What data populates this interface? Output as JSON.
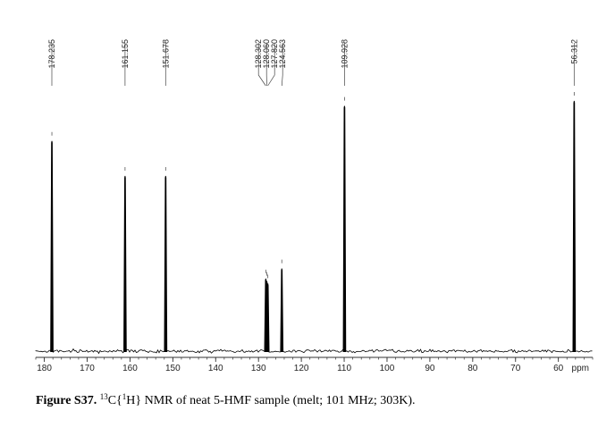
{
  "chart_data": {
    "type": "line",
    "spectrum": "13C{1H} NMR",
    "xlabel": "ppm",
    "xlim": [
      182,
      52
    ],
    "x_reversed": true,
    "x_ticks": [
      180,
      170,
      160,
      150,
      140,
      130,
      120,
      110,
      100,
      90,
      80,
      70,
      60
    ],
    "grid": false,
    "peaks": [
      {
        "label": "178.235",
        "ppm": 178.235,
        "intensity": 0.84
      },
      {
        "label": "161.155",
        "ppm": 161.155,
        "intensity": 0.7
      },
      {
        "label": "151.678",
        "ppm": 151.678,
        "intensity": 0.7
      },
      {
        "label": "128.302",
        "ppm": 128.302,
        "intensity": 0.29
      },
      {
        "label": "128.060",
        "ppm": 128.06,
        "intensity": 0.28
      },
      {
        "label": "127.820",
        "ppm": 127.82,
        "intensity": 0.27
      },
      {
        "label": "124.563",
        "ppm": 124.563,
        "intensity": 0.33
      },
      {
        "label": "109.928",
        "ppm": 109.928,
        "intensity": 0.98
      },
      {
        "label": "56.312",
        "ppm": 56.312,
        "intensity": 1.0
      }
    ]
  },
  "caption": {
    "figure_label": "Figure S37.",
    "nucleus_mass": "13",
    "nucleus_symbol": "C{",
    "decoupled_mass": "1",
    "decoupled_symbol": "H}",
    "text": " NMR of neat 5-HMF sample (melt; 101 MHz; 303K)."
  },
  "colors": {
    "trace": "#000000",
    "axis": "#333333"
  }
}
